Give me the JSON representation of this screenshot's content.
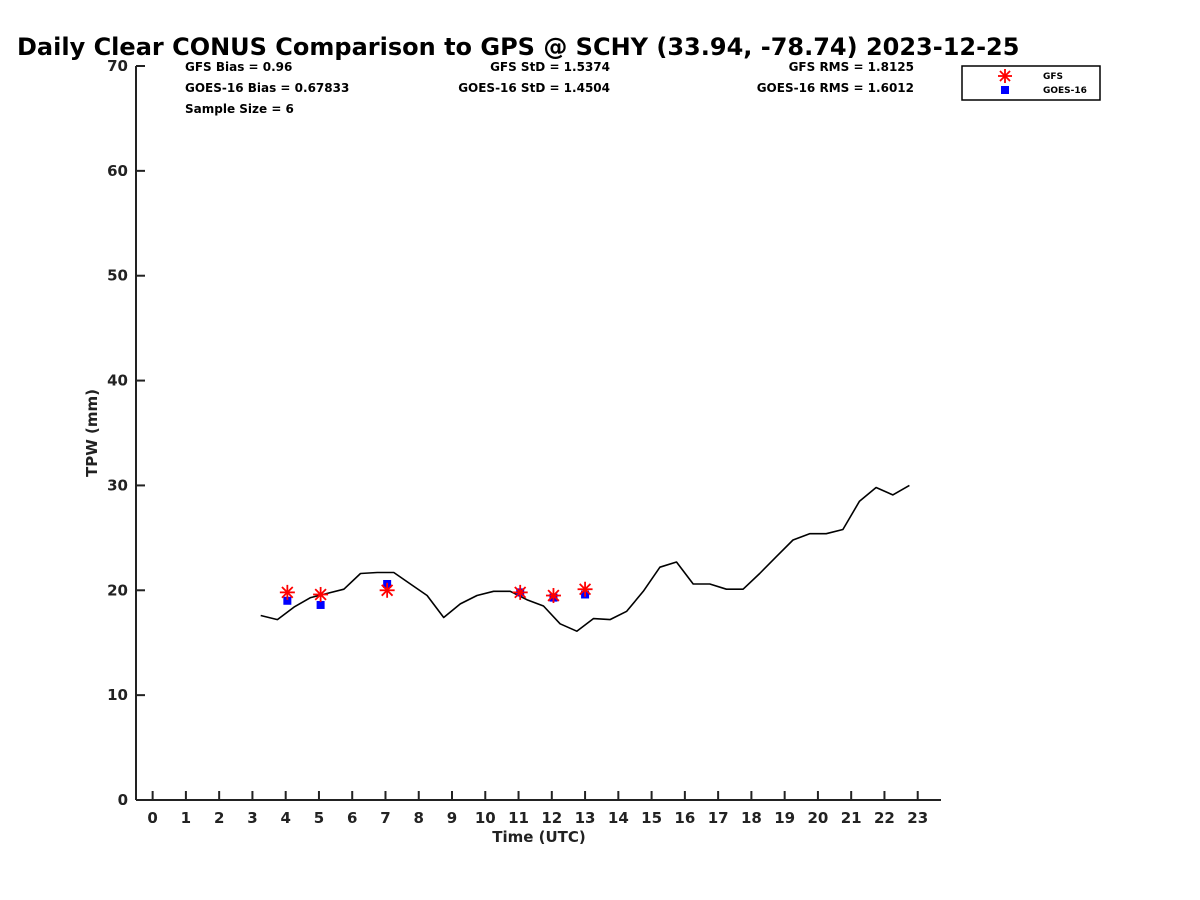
{
  "chart_data": {
    "type": "scatter",
    "title": "Daily Clear CONUS Comparison to GPS @ SCHY (33.94, -78.74) 2023-12-25",
    "xlabel": "Time (UTC)",
    "ylabel": "TPW (mm)",
    "xlim": [
      -0.5,
      23.7
    ],
    "ylim": [
      0,
      70
    ],
    "x_ticks": [
      "0",
      "1",
      "2",
      "3",
      "4",
      "5",
      "6",
      "7",
      "8",
      "9",
      "10",
      "11",
      "12",
      "13",
      "14",
      "15",
      "16",
      "17",
      "18",
      "19",
      "20",
      "21",
      "22",
      "23"
    ],
    "y_ticks": [
      "0",
      "10",
      "20",
      "30",
      "40",
      "50",
      "60",
      "70"
    ],
    "stats": {
      "gfs_bias": "GFS Bias = 0.96",
      "goes_bias": "GOES-16 Bias = 0.67833",
      "sample_size": "Sample Size = 6",
      "gfs_std": "GFS StD = 1.5374",
      "goes_std": "GOES-16 StD = 1.4504",
      "gfs_rms": "GFS RMS = 1.8125",
      "goes_rms": "GOES-16 RMS = 1.6012"
    },
    "legend": {
      "position": "top-right",
      "entries": [
        {
          "name": "GFS",
          "color": "#ff0000",
          "marker": "asterisk"
        },
        {
          "name": "GOES-16",
          "color": "#0000ff",
          "marker": "square"
        }
      ]
    },
    "series": [
      {
        "name": "GPS",
        "kind": "line",
        "color": "#000000",
        "x": [
          3.25,
          3.75,
          4.25,
          4.75,
          5.25,
          5.75,
          6.25,
          6.75,
          7.25,
          7.75,
          8.25,
          8.75,
          9.25,
          9.75,
          10.25,
          10.75,
          11.25,
          11.75,
          12.25,
          12.75,
          13.25,
          13.75,
          14.25,
          14.75,
          15.25,
          15.75,
          16.25,
          16.75,
          17.25,
          17.75,
          18.25,
          18.75,
          19.25,
          19.75,
          20.25,
          20.75,
          21.25,
          21.75,
          22.25,
          22.75
        ],
        "y": [
          17.6,
          17.2,
          18.4,
          19.3,
          19.7,
          20.1,
          21.6,
          21.7,
          21.7,
          20.6,
          19.5,
          17.4,
          18.7,
          19.5,
          19.9,
          19.9,
          19.1,
          18.5,
          16.8,
          16.1,
          17.3,
          17.2,
          18.0,
          19.9,
          22.2,
          22.7,
          20.6,
          20.6,
          20.1,
          20.1,
          21.6,
          23.2,
          24.8,
          25.4,
          25.4,
          25.8,
          28.5,
          29.8,
          29.1,
          30.0
        ]
      },
      {
        "name": "GFS",
        "kind": "scatter",
        "marker": "asterisk",
        "color": "#ff0000",
        "x": [
          4.05,
          5.05,
          7.05,
          11.05,
          12.05,
          13.0
        ],
        "y": [
          19.8,
          19.6,
          20.0,
          19.8,
          19.5,
          20.1
        ]
      },
      {
        "name": "GOES-16",
        "kind": "scatter",
        "marker": "square",
        "color": "#0000ff",
        "x": [
          4.05,
          5.05,
          7.05,
          11.05,
          12.05,
          13.0
        ],
        "y": [
          19.0,
          18.6,
          20.6,
          19.8,
          19.3,
          19.6
        ]
      }
    ]
  }
}
